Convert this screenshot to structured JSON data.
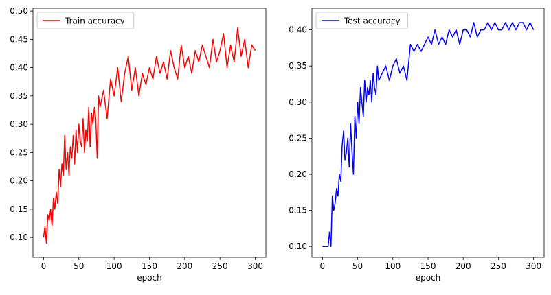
{
  "chart_data": [
    {
      "type": "line",
      "xlabel": "epoch",
      "ylabel": "",
      "xlim": [
        -15,
        315
      ],
      "ylim": [
        0.065,
        0.505
      ],
      "xticks": [
        0,
        50,
        100,
        150,
        200,
        250,
        300
      ],
      "yticks": [
        0.1,
        0.15,
        0.2,
        0.25,
        0.3,
        0.35,
        0.4,
        0.45,
        0.5
      ],
      "ytick_labels": [
        "0.10",
        "0.15",
        "0.20",
        "0.25",
        "0.30",
        "0.35",
        "0.40",
        "0.45",
        "0.50"
      ],
      "legend": "top-left",
      "grid": false,
      "series": [
        {
          "name": "Train accuracy",
          "color": "#ff0000",
          "x": [
            0,
            2,
            4,
            6,
            8,
            10,
            12,
            14,
            16,
            18,
            20,
            22,
            24,
            26,
            28,
            30,
            32,
            34,
            36,
            38,
            40,
            42,
            44,
            46,
            48,
            50,
            52,
            54,
            56,
            58,
            60,
            62,
            64,
            66,
            68,
            70,
            72,
            74,
            76,
            78,
            80,
            85,
            90,
            95,
            100,
            105,
            110,
            115,
            120,
            125,
            130,
            135,
            140,
            145,
            150,
            155,
            160,
            165,
            170,
            175,
            180,
            185,
            190,
            195,
            200,
            205,
            210,
            215,
            220,
            225,
            230,
            235,
            240,
            245,
            250,
            255,
            260,
            265,
            270,
            275,
            280,
            285,
            290,
            295,
            300
          ],
          "values": [
            0.1,
            0.12,
            0.09,
            0.14,
            0.13,
            0.15,
            0.12,
            0.17,
            0.15,
            0.18,
            0.16,
            0.22,
            0.19,
            0.23,
            0.21,
            0.28,
            0.22,
            0.25,
            0.21,
            0.26,
            0.24,
            0.28,
            0.23,
            0.29,
            0.25,
            0.3,
            0.27,
            0.26,
            0.31,
            0.25,
            0.29,
            0.27,
            0.33,
            0.26,
            0.32,
            0.3,
            0.33,
            0.31,
            0.24,
            0.35,
            0.33,
            0.36,
            0.31,
            0.38,
            0.35,
            0.4,
            0.34,
            0.39,
            0.42,
            0.36,
            0.4,
            0.35,
            0.39,
            0.37,
            0.4,
            0.38,
            0.42,
            0.39,
            0.41,
            0.38,
            0.43,
            0.4,
            0.38,
            0.44,
            0.4,
            0.42,
            0.39,
            0.43,
            0.41,
            0.44,
            0.42,
            0.4,
            0.45,
            0.41,
            0.43,
            0.46,
            0.4,
            0.44,
            0.41,
            0.47,
            0.42,
            0.45,
            0.4,
            0.44,
            0.43
          ]
        }
      ]
    },
    {
      "type": "line",
      "xlabel": "epoch",
      "ylabel": "",
      "xlim": [
        -15,
        315
      ],
      "ylim": [
        0.085,
        0.43
      ],
      "xticks": [
        0,
        50,
        100,
        150,
        200,
        250,
        300
      ],
      "yticks": [
        0.1,
        0.15,
        0.2,
        0.25,
        0.3,
        0.35,
        0.4
      ],
      "ytick_labels": [
        "0.10",
        "0.15",
        "0.20",
        "0.25",
        "0.30",
        "0.35",
        "0.40"
      ],
      "legend": "top-left",
      "grid": false,
      "series": [
        {
          "name": "Test accuracy",
          "color": "#0000ff",
          "x": [
            0,
            2,
            4,
            6,
            8,
            10,
            12,
            14,
            16,
            18,
            20,
            22,
            24,
            26,
            28,
            30,
            32,
            34,
            36,
            38,
            40,
            42,
            44,
            46,
            48,
            50,
            52,
            54,
            56,
            58,
            60,
            62,
            64,
            66,
            68,
            70,
            72,
            74,
            76,
            78,
            80,
            85,
            90,
            95,
            100,
            105,
            110,
            115,
            120,
            125,
            130,
            135,
            140,
            145,
            150,
            155,
            160,
            165,
            170,
            175,
            180,
            185,
            190,
            195,
            200,
            205,
            210,
            215,
            220,
            225,
            230,
            235,
            240,
            245,
            250,
            255,
            260,
            265,
            270,
            275,
            280,
            285,
            290,
            295,
            300
          ],
          "values": [
            0.1,
            0.1,
            0.1,
            0.1,
            0.1,
            0.12,
            0.1,
            0.17,
            0.15,
            0.16,
            0.18,
            0.17,
            0.2,
            0.19,
            0.24,
            0.26,
            0.22,
            0.23,
            0.25,
            0.21,
            0.27,
            0.23,
            0.2,
            0.28,
            0.25,
            0.3,
            0.27,
            0.32,
            0.3,
            0.28,
            0.33,
            0.3,
            0.32,
            0.31,
            0.33,
            0.3,
            0.34,
            0.32,
            0.31,
            0.35,
            0.33,
            0.34,
            0.35,
            0.33,
            0.35,
            0.36,
            0.34,
            0.35,
            0.33,
            0.38,
            0.37,
            0.38,
            0.37,
            0.38,
            0.39,
            0.38,
            0.4,
            0.38,
            0.39,
            0.38,
            0.4,
            0.39,
            0.4,
            0.38,
            0.4,
            0.4,
            0.39,
            0.41,
            0.39,
            0.4,
            0.4,
            0.41,
            0.4,
            0.41,
            0.4,
            0.4,
            0.41,
            0.4,
            0.41,
            0.4,
            0.41,
            0.41,
            0.4,
            0.41,
            0.4
          ]
        }
      ]
    }
  ]
}
